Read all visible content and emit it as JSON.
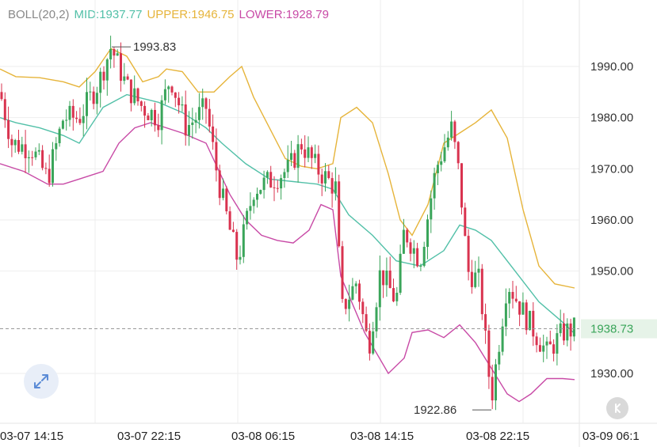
{
  "legend": {
    "name": "BOLL(20,2)",
    "mid_label": "MID:1937.77",
    "upper_label": "UPPER:1946.75",
    "lower_label": "LOWER:1928.79"
  },
  "colors": {
    "up": "#3aa55a",
    "down": "#d9334f",
    "mid": "#52c0a8",
    "upper": "#e6b43a",
    "lower": "#c84aa6",
    "grid": "#eeeeee",
    "price_tag_bg": "#e6f3e8",
    "price_tag_text": "#3aa55a",
    "legend_name": "#888888"
  },
  "icons": {
    "expand": "expand-arrows-icon",
    "back": "chevron-left-icon"
  },
  "chart_data": {
    "type": "candlestick",
    "title": "",
    "y_ticks": [
      1990,
      1980,
      1970,
      1960,
      1950,
      1930
    ],
    "y_tick_labels": [
      "1990.00",
      "1980.00",
      "1970.00",
      "1960.00",
      "1950.00",
      "1930.00"
    ],
    "x_tick_labels": [
      "03-07 14:15",
      "03-07 22:15",
      "03-08 06:15",
      "03-08 14:15",
      "03-08 22:15",
      "03-09 06:1"
    ],
    "ylim": [
      1922,
      1999
    ],
    "current_price": 1938.73,
    "current_price_label": "1938.73",
    "high_label": "1993.83",
    "low_label": "1922.86",
    "bollinger": {
      "period": 20,
      "stddev": 2,
      "upper": [
        [
          0,
          1989.5
        ],
        [
          20,
          1988
        ],
        [
          50,
          1987.8
        ],
        [
          80,
          1987
        ],
        [
          100,
          1986
        ],
        [
          120,
          1989
        ],
        [
          140,
          1993.5
        ],
        [
          160,
          1992
        ],
        [
          180,
          1987
        ],
        [
          200,
          1988
        ],
        [
          210,
          1989.5
        ],
        [
          230,
          1989
        ],
        [
          250,
          1985
        ],
        [
          270,
          1985
        ],
        [
          290,
          1988
        ],
        [
          305,
          1990
        ],
        [
          320,
          1984
        ],
        [
          340,
          1978
        ],
        [
          360,
          1972
        ],
        [
          380,
          1970.5
        ],
        [
          400,
          1970
        ],
        [
          420,
          1971
        ],
        [
          430,
          1980
        ],
        [
          450,
          1982
        ],
        [
          470,
          1979
        ],
        [
          490,
          1969
        ],
        [
          505,
          1960
        ],
        [
          520,
          1957
        ],
        [
          540,
          1963
        ],
        [
          560,
          1975
        ],
        [
          580,
          1977
        ],
        [
          600,
          1979
        ],
        [
          620,
          1981.5
        ],
        [
          640,
          1976
        ],
        [
          660,
          1962
        ],
        [
          680,
          1951
        ],
        [
          700,
          1947.5
        ],
        [
          725,
          1946.7
        ]
      ],
      "mid": [
        [
          0,
          1980
        ],
        [
          20,
          1979
        ],
        [
          50,
          1978
        ],
        [
          80,
          1976.5
        ],
        [
          100,
          1975
        ],
        [
          130,
          1982
        ],
        [
          160,
          1984.5
        ],
        [
          200,
          1983
        ],
        [
          230,
          1981
        ],
        [
          260,
          1978
        ],
        [
          280,
          1975
        ],
        [
          310,
          1971
        ],
        [
          340,
          1968
        ],
        [
          370,
          1967.5
        ],
        [
          400,
          1967
        ],
        [
          420,
          1966
        ],
        [
          440,
          1961
        ],
        [
          470,
          1957
        ],
        [
          500,
          1952
        ],
        [
          530,
          1951
        ],
        [
          560,
          1954
        ],
        [
          580,
          1959
        ],
        [
          600,
          1958
        ],
        [
          620,
          1956
        ],
        [
          650,
          1950
        ],
        [
          680,
          1944
        ],
        [
          710,
          1940
        ],
        [
          725,
          1937.8
        ]
      ],
      "lower": [
        [
          0,
          1971
        ],
        [
          30,
          1969.5
        ],
        [
          60,
          1967
        ],
        [
          80,
          1967
        ],
        [
          100,
          1968
        ],
        [
          130,
          1969.5
        ],
        [
          150,
          1975
        ],
        [
          170,
          1978
        ],
        [
          190,
          1979
        ],
        [
          230,
          1977
        ],
        [
          260,
          1975
        ],
        [
          290,
          1965
        ],
        [
          310,
          1960
        ],
        [
          330,
          1957
        ],
        [
          350,
          1956
        ],
        [
          370,
          1955.5
        ],
        [
          390,
          1958
        ],
        [
          405,
          1963
        ],
        [
          420,
          1962
        ],
        [
          430,
          1949
        ],
        [
          460,
          1938
        ],
        [
          490,
          1930
        ],
        [
          510,
          1933
        ],
        [
          520,
          1938
        ],
        [
          540,
          1938.5
        ],
        [
          560,
          1937
        ],
        [
          580,
          1939.5
        ],
        [
          600,
          1936
        ],
        [
          620,
          1931
        ],
        [
          640,
          1926
        ],
        [
          655,
          1924.5
        ],
        [
          670,
          1926
        ],
        [
          690,
          1929
        ],
        [
          710,
          1929
        ],
        [
          725,
          1928.8
        ]
      ]
    }
  }
}
